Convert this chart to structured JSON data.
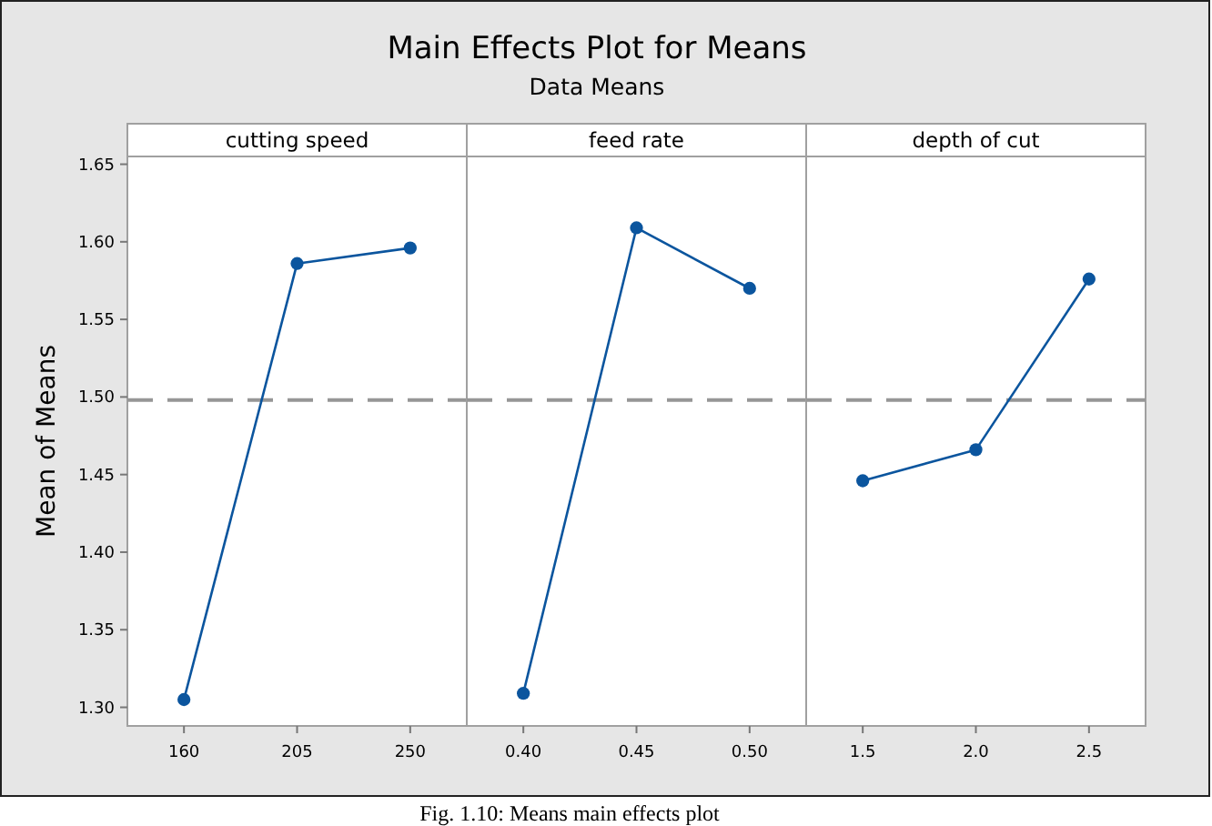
{
  "chart_data": [
    {
      "type": "line",
      "xlabel": "cutting speed",
      "ylabel": "Mean of Means",
      "categories": [
        "160",
        "205",
        "250"
      ],
      "values": [
        1.305,
        1.586,
        1.596
      ],
      "color": "#0b559e",
      "marker": "circle",
      "line_style": "solid",
      "ylim": [
        1.288,
        1.655
      ],
      "yticks": [
        {
          "value": 1.3,
          "label": "1.30"
        },
        1.35,
        {
          "value": 1.4,
          "label": "1.40"
        },
        1.45,
        {
          "value": 1.5,
          "label": "1.50"
        },
        1.55,
        {
          "value": 1.6,
          "label": "1.60"
        },
        1.65
      ],
      "ref_lines": [
        {
          "axis": "y",
          "value": 1.498,
          "color": "#969696",
          "line_style": "dashed"
        }
      ],
      "grid": false,
      "annotations": [
        "Fig. 1.10: Means main effects plot"
      ]
    },
    {
      "type": "line",
      "title": "Main Effects Plot for Means",
      "subtitle": "Data Means",
      "xlabel": "feed rate",
      "categories": [
        "0.40",
        "0.45",
        "0.50"
      ],
      "values": [
        1.309,
        1.609,
        1.57
      ],
      "color": "#0b559e",
      "marker": "circle",
      "line_style": "solid",
      "ylim": [
        1.288,
        1.655
      ],
      "tick_labels": "x",
      "ref_lines": [
        {
          "axis": "y",
          "value": 1.498,
          "color": "#969696",
          "line_style": "dashed"
        }
      ],
      "grid": false
    },
    {
      "type": "line",
      "xlabel": "depth of cut",
      "categories": [
        "1.5",
        "2.0",
        "2.5"
      ],
      "values": [
        1.446,
        1.466,
        1.576
      ],
      "color": "#0b559e",
      "marker": "circle",
      "line_style": "solid",
      "ylim": [
        1.288,
        1.655
      ],
      "tick_labels": "x",
      "ref_lines": [
        {
          "axis": "y",
          "value": 1.498,
          "color": "#969696",
          "line_style": "dashed"
        }
      ],
      "grid": false
    }
  ]
}
